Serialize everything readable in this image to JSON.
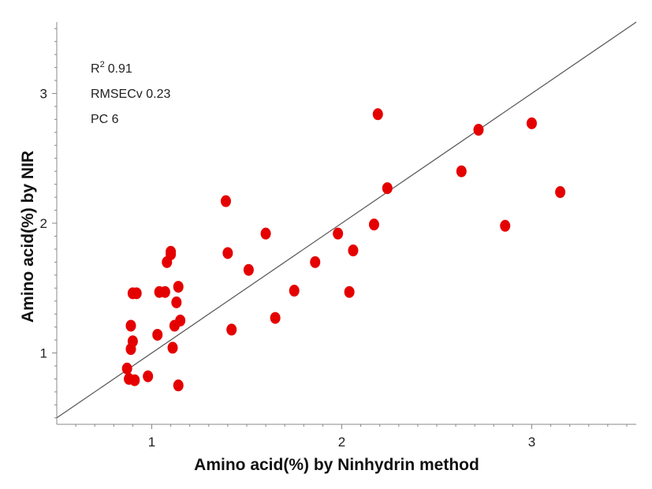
{
  "chart_data": {
    "type": "scatter",
    "xlabel": "Amino acid(%) by Ninhydrin method",
    "ylabel": "Amino acid(%)  by NIR",
    "xlim": [
      0.5,
      3.55
    ],
    "ylim": [
      0.45,
      3.55
    ],
    "x_ticks": [
      "1",
      "2",
      "3"
    ],
    "y_ticks": [
      "1",
      "2",
      "3"
    ],
    "marker_color": "#e50000",
    "line_color": "#555555",
    "reference_line": "y = x",
    "stats": {
      "r2_label": "R",
      "r2_sup": "2",
      "r2_value": "0.91",
      "rmsecv": "RMSECv 0.23",
      "pc": "PC 6"
    },
    "x": [
      0.87,
      0.88,
      0.89,
      0.89,
      0.9,
      0.91,
      0.9,
      0.92,
      0.98,
      1.04,
      1.03,
      1.07,
      1.08,
      1.1,
      1.1,
      1.11,
      1.12,
      1.13,
      1.14,
      1.14,
      1.15,
      1.39,
      1.4,
      1.42,
      1.51,
      1.6,
      1.65,
      1.75,
      1.86,
      1.98,
      2.04,
      2.06,
      2.17,
      2.19,
      2.24,
      2.63,
      2.72,
      3.0,
      3.15,
      2.86
    ],
    "y": [
      0.88,
      0.8,
      1.21,
      1.03,
      1.09,
      0.79,
      1.46,
      1.46,
      0.82,
      1.47,
      1.14,
      1.47,
      1.7,
      1.76,
      1.78,
      1.04,
      1.21,
      1.39,
      1.51,
      0.75,
      1.25,
      2.17,
      1.77,
      1.18,
      1.64,
      1.92,
      1.27,
      1.48,
      1.7,
      1.92,
      1.47,
      1.79,
      1.99,
      2.84,
      2.27,
      2.4,
      2.72,
      2.77,
      2.24,
      1.98
    ]
  }
}
